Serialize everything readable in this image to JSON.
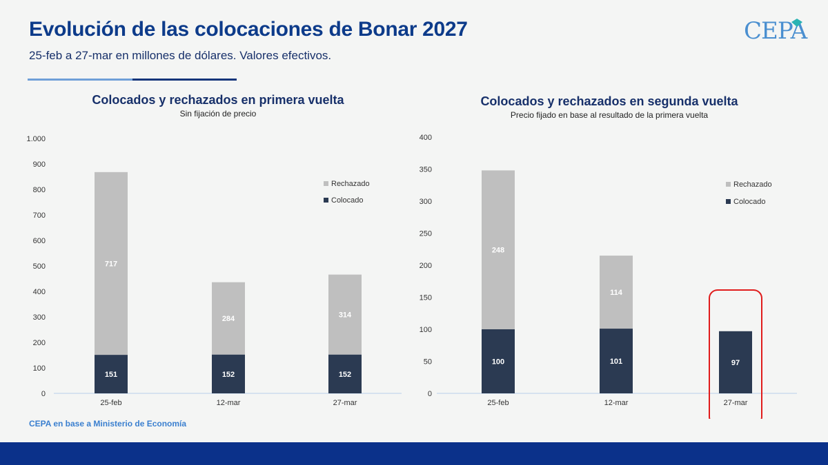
{
  "header": {
    "title": "Evolución de las colocaciones de Bonar 2027",
    "subtitle": "25-feb a 27-mar en millones de dólares. Valores efectivos.",
    "logo": "CEPA"
  },
  "source": "CEPA en base a Ministerio de Economía",
  "colors": {
    "title": "#0d3b8a",
    "rechazado": "#bfbfbf",
    "colocado": "#2b3a52",
    "highlight": "#e01b1b",
    "footer": "#0b318a"
  },
  "chart_data": [
    {
      "type": "bar",
      "stacked": true,
      "title": "Colocados y rechazados en primera vuelta",
      "subtitle": "Sin fijación de precio",
      "categories": [
        "25-feb",
        "12-mar",
        "27-mar"
      ],
      "series": [
        {
          "name": "Colocado",
          "values": [
            151,
            152,
            152
          ],
          "labels": [
            "151",
            "152",
            "152"
          ]
        },
        {
          "name": "Rechazado",
          "values": [
            717,
            284,
            314
          ],
          "labels": [
            "717",
            "284",
            "314"
          ]
        }
      ],
      "legend": [
        "Rechazado",
        "Colocado"
      ],
      "ylim": [
        0,
        1000
      ],
      "yticks": [
        0,
        100,
        200,
        300,
        400,
        500,
        600,
        700,
        800,
        900,
        1000
      ],
      "ytick_labels": [
        "0",
        "100",
        "200",
        "300",
        "400",
        "500",
        "600",
        "700",
        "800",
        "900",
        "1.000"
      ],
      "highlight_category": null
    },
    {
      "type": "bar",
      "stacked": true,
      "title": "Colocados y rechazados en segunda vuelta",
      "subtitle": "Precio fijado en base al resultado de la primera vuelta",
      "categories": [
        "25-feb",
        "12-mar",
        "27-mar"
      ],
      "series": [
        {
          "name": "Colocado",
          "values": [
            100,
            101,
            97
          ],
          "labels": [
            "100",
            "101",
            "97"
          ]
        },
        {
          "name": "Rechazado",
          "values": [
            248,
            114,
            0
          ],
          "labels": [
            "248",
            "114",
            ""
          ]
        }
      ],
      "legend": [
        "Rechazado",
        "Colocado"
      ],
      "ylim": [
        0,
        400
      ],
      "yticks": [
        0,
        50,
        100,
        150,
        200,
        250,
        300,
        350,
        400
      ],
      "ytick_labels": [
        "0",
        "50",
        "100",
        "150",
        "200",
        "250",
        "300",
        "350",
        "400"
      ],
      "highlight_category": "27-mar"
    }
  ]
}
